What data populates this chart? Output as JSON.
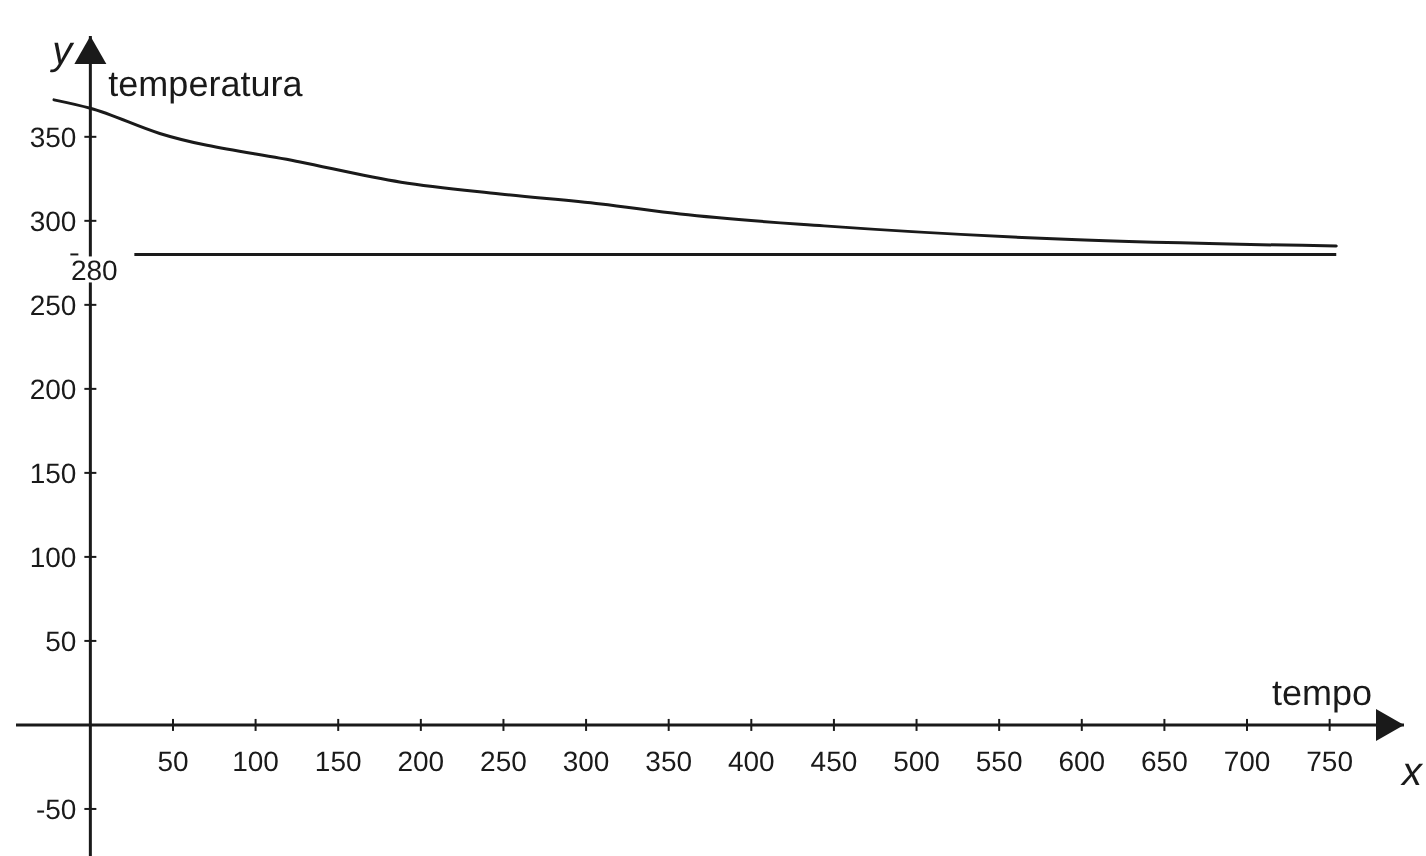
{
  "chart_data": {
    "type": "line",
    "xlabel": "x",
    "ylabel": "y",
    "annotations": [
      "temperatura",
      "tempo"
    ],
    "x": [
      -22,
      0,
      42,
      127,
      188,
      248,
      309,
      357,
      444,
      590,
      754
    ],
    "series": [
      {
        "color": "#1a1a1a",
        "values": [
          372,
          367,
          352,
          335,
          323,
          316,
          310,
          304,
          297,
          289,
          285
        ]
      }
    ],
    "xlim": [
      -45,
      795
    ],
    "ylim": [
      -78,
      410
    ],
    "xticks": [
      50,
      100,
      150,
      200,
      250,
      300,
      350,
      400,
      450,
      500,
      550,
      600,
      650,
      700,
      750
    ],
    "yticks": [
      -50,
      50,
      100,
      150,
      200,
      250,
      300,
      350
    ],
    "ref_lines": [
      {
        "axis": "y",
        "value": 280,
        "label": "280",
        "color": "#1a1a1a"
      }
    ],
    "grid": false,
    "marker": "none",
    "line_style": "solid"
  }
}
